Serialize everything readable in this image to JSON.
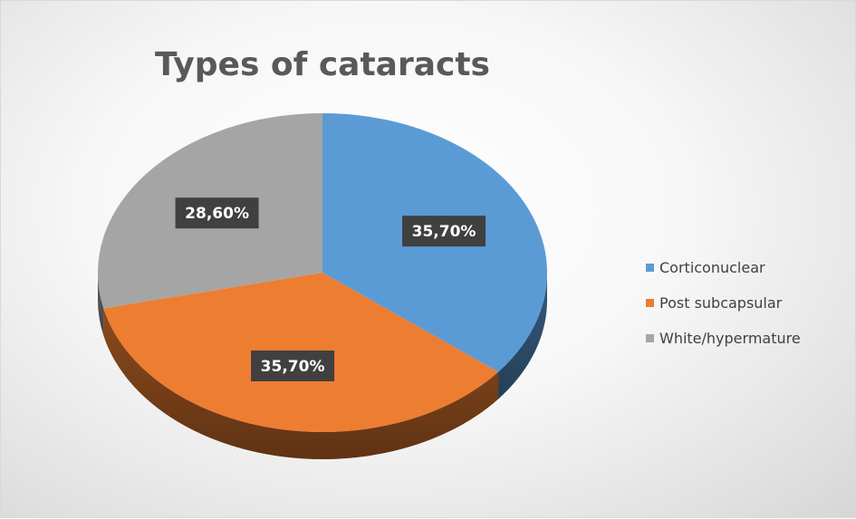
{
  "chart_data": {
    "type": "pie",
    "title": "Types of cataracts",
    "categories": [
      "Corticonuclear",
      "Post subcapsular",
      "White/hypermature"
    ],
    "values": [
      35.7,
      35.7,
      28.6
    ],
    "data_labels": [
      "35,70%",
      "35,70%",
      "28,60%"
    ],
    "colors": [
      "#5B9BD5",
      "#ED7D31",
      "#A5A5A5"
    ],
    "legend_position": "right",
    "style": "3d"
  }
}
